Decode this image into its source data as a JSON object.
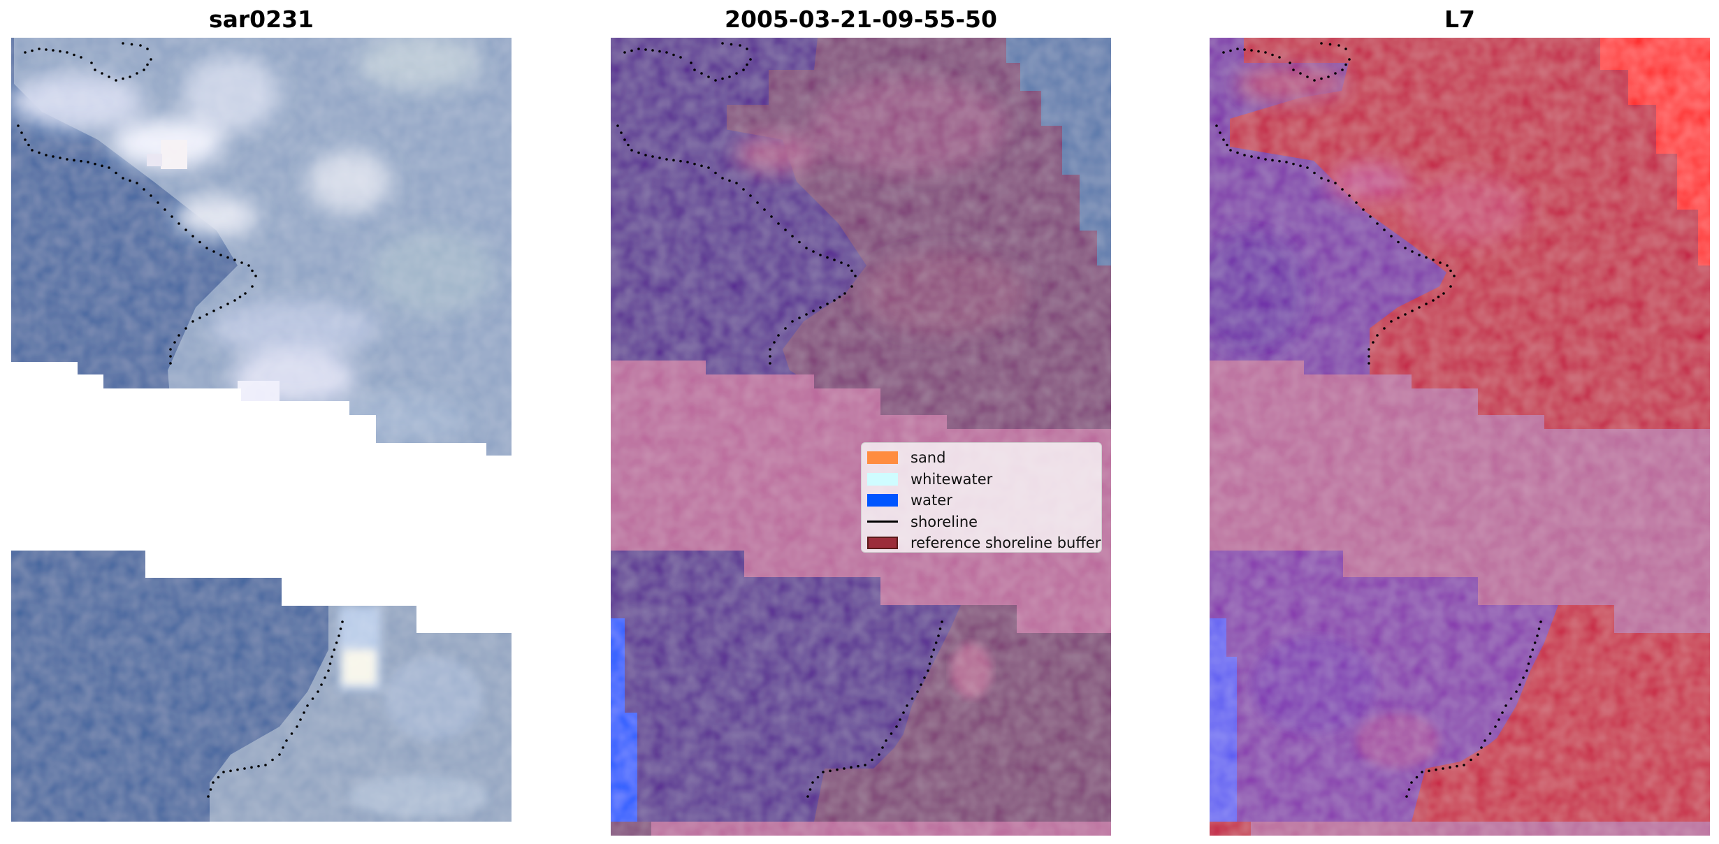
{
  "panels": [
    {
      "title": "sar0231"
    },
    {
      "title": "2005-03-21-09-55-50"
    },
    {
      "title": "L7"
    }
  ],
  "legend": {
    "items": [
      {
        "label": "sand",
        "color": "#ff8c40"
      },
      {
        "label": "whitewater",
        "color": "#cffcff"
      },
      {
        "label": "water",
        "color": "#0055ff"
      },
      {
        "label": "shoreline",
        "color": "#000000"
      },
      {
        "label": "reference shoreline buffer",
        "color": "#9b2d3a"
      }
    ]
  },
  "colors": {
    "rgb_water": "#3f649f",
    "rgb_land": "#93a7c3",
    "rgb_cloud": "#d7dbe9",
    "class_water": "#53238f",
    "class_land": "#7d3c74",
    "class_buffer": "#b9659a",
    "class_water_pixels": "#0055ff",
    "ndvi_water": "#7a2dac",
    "ndvi_land": "#c7153d",
    "ndvi_hot": "#ff1e1e",
    "ndvi_buffer": "#b9659a",
    "ndvi_blue": "#5c5cf5"
  }
}
